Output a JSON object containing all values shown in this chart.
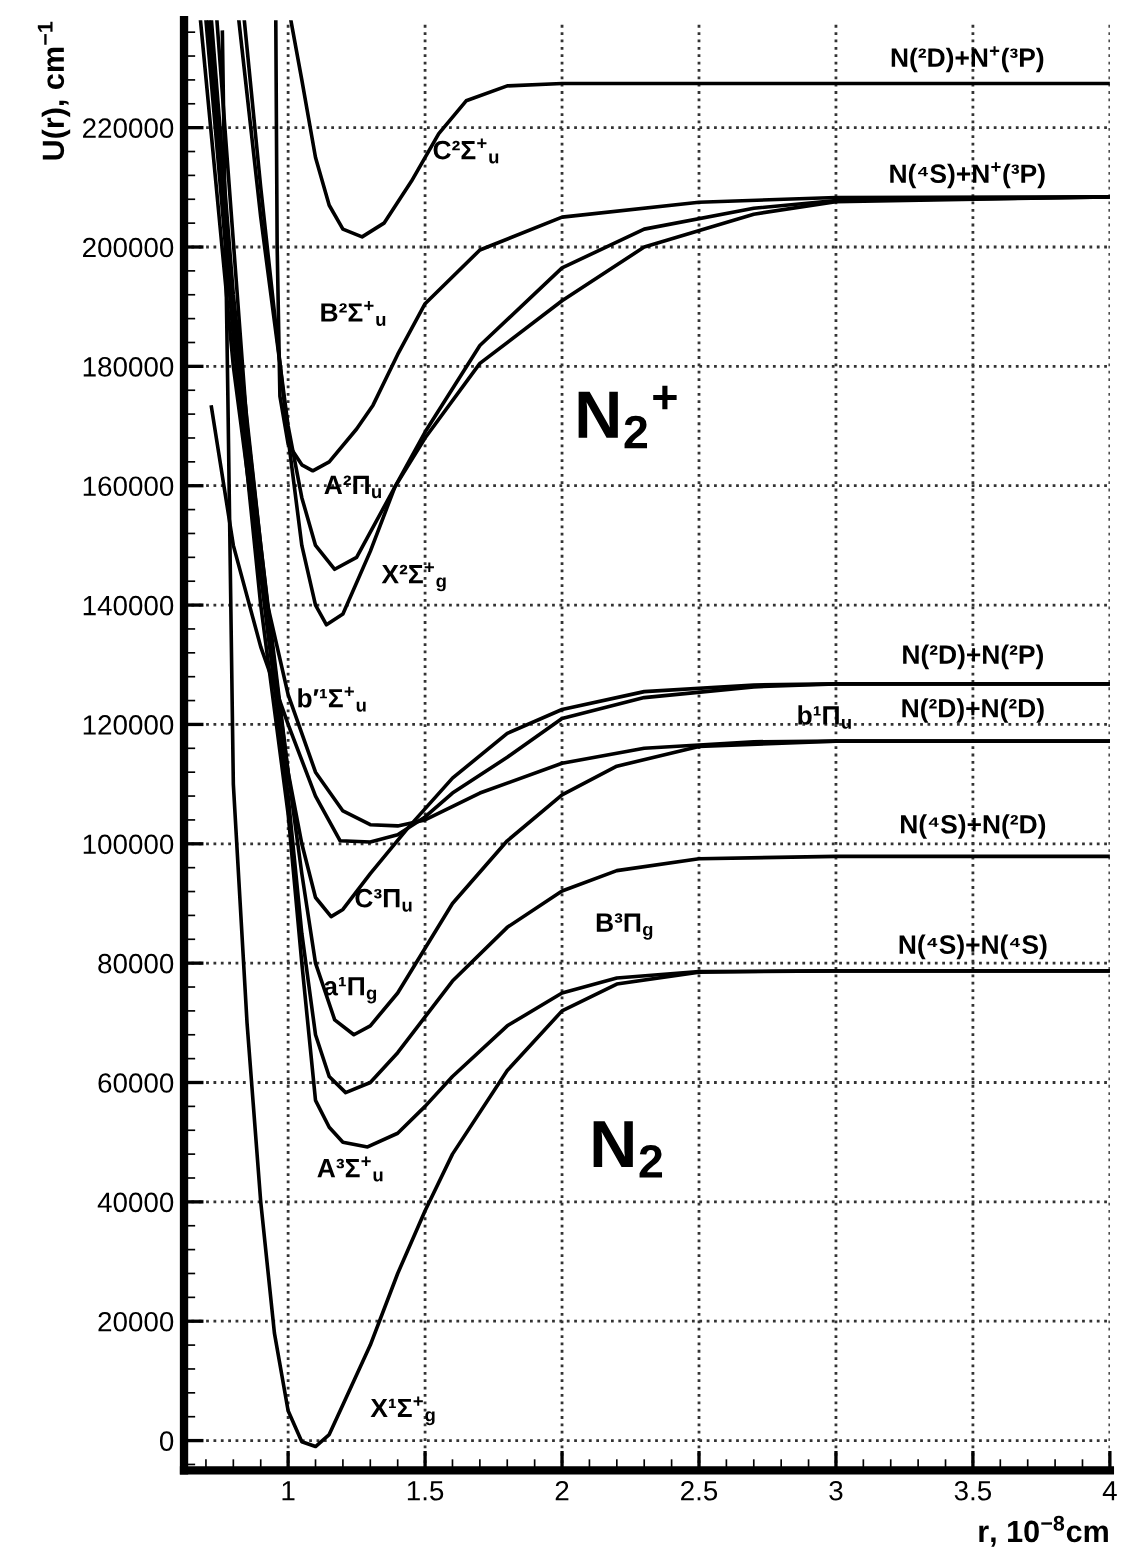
{
  "chart_data": {
    "type": "line",
    "xlabel": "r, 10$^{−8}$cm",
    "ylabel": "U(r), cm$^{−1}$",
    "xlim": [
      0.62,
      4
    ],
    "ylim": [
      -5000,
      238000
    ],
    "xticks": [
      1,
      1.5,
      2,
      2.5,
      3,
      3.5,
      4
    ],
    "yticks": [
      0,
      20000,
      40000,
      60000,
      80000,
      100000,
      120000,
      140000,
      160000,
      180000,
      200000,
      220000
    ],
    "grid": true,
    "line_style": "solid",
    "marker": "none",
    "series": [
      {
        "color": "#000000",
        "x": [
          0.76,
          0.78,
          0.8,
          0.85,
          0.9,
          0.95,
          1.0,
          1.05,
          1.1,
          1.15,
          1.2,
          1.3,
          1.4,
          1.5,
          1.6,
          1.8,
          2.0,
          2.2,
          2.5,
          3.0,
          4.0
        ],
        "values": [
          236000,
          175000,
          110000,
          70000,
          40000,
          18000,
          5000,
          -200,
          -1000,
          1000,
          6000,
          16000,
          28000,
          38500,
          48000,
          62000,
          72000,
          76500,
          78500,
          78700,
          78700
        ]
      },
      {
        "color": "#000000",
        "x": [
          0.7,
          0.8,
          0.9,
          1.0,
          1.05,
          1.1,
          1.15,
          1.2,
          1.29,
          1.4,
          1.5,
          1.6,
          1.8,
          2.0,
          2.2,
          2.5,
          3.0,
          4.0
        ],
        "values": [
          238000,
          185000,
          140000,
          105000,
          80000,
          57000,
          52500,
          50000,
          49200,
          51500,
          56000,
          61000,
          69500,
          75000,
          77500,
          78600,
          78700,
          78700
        ]
      },
      {
        "color": "#000000",
        "x": [
          0.71,
          0.8,
          0.9,
          1.0,
          1.05,
          1.1,
          1.15,
          1.21,
          1.3,
          1.4,
          1.5,
          1.6,
          1.8,
          2.0,
          2.2,
          2.5,
          3.0,
          4.0
        ],
        "values": [
          238000,
          188000,
          145000,
          108000,
          85000,
          68000,
          61000,
          58300,
          60000,
          65000,
          71000,
          77000,
          86000,
          92100,
          95500,
          97500,
          97900,
          97900
        ]
      },
      {
        "color": "#000000",
        "x": [
          0.72,
          0.8,
          0.9,
          1.0,
          1.05,
          1.1,
          1.17,
          1.24,
          1.3,
          1.4,
          1.5,
          1.6,
          1.8,
          2.0,
          2.2,
          2.5,
          3.0,
          4.0
        ],
        "values": [
          238000,
          192000,
          150000,
          112000,
          95000,
          80000,
          70500,
          68000,
          69500,
          75000,
          82500,
          90000,
          100500,
          108200,
          113000,
          116300,
          117200,
          117200
        ]
      },
      {
        "color": "#000000",
        "x": [
          0.74,
          0.85,
          0.95,
          1.0,
          1.05,
          1.1,
          1.157,
          1.2,
          1.3,
          1.44,
          1.6,
          1.8,
          2.0,
          2.3,
          2.7,
          3.0,
          4.0
        ],
        "values": [
          238000,
          170000,
          130000,
          112000,
          100000,
          91000,
          87800,
          89000,
          95000,
          102800,
          111000,
          118500,
          122500,
          125500,
          126600,
          126800,
          126800
        ]
      },
      {
        "color": "#000000",
        "x": [
          0.72,
          0.8,
          0.9,
          1.0,
          1.1,
          1.19,
          1.3,
          1.4,
          1.5,
          1.6,
          1.8,
          2.0,
          2.3,
          2.7,
          3.0,
          4.0
        ],
        "values": [
          173200,
          150000,
          133000,
          120000,
          108000,
          100500,
          100300,
          101500,
          104500,
          108500,
          114500,
          121000,
          124500,
          126300,
          126800,
          126800
        ]
      },
      {
        "color": "#000000",
        "x": [
          0.68,
          0.8,
          0.9,
          1.0,
          1.1,
          1.2,
          1.3,
          1.4,
          1.5,
          1.7,
          2.0,
          2.3,
          2.7,
          3.0,
          4.0
        ],
        "values": [
          238000,
          180000,
          145000,
          125000,
          112000,
          105500,
          103200,
          103000,
          104000,
          108500,
          113500,
          116000,
          117100,
          117200,
          117200
        ]
      },
      {
        "color": "#000000",
        "x": [
          1.01,
          1.05,
          1.1,
          1.15,
          1.2,
          1.27,
          1.35,
          1.45,
          1.55,
          1.65,
          1.8,
          2.0,
          4.0
        ],
        "values": [
          238000,
          228000,
          215000,
          207000,
          203000,
          201700,
          204000,
          211000,
          219000,
          224500,
          227000,
          227400,
          227400
        ]
      },
      {
        "color": "#000000",
        "x": [
          0.955,
          0.96,
          0.97,
          1.0,
          1.05,
          1.09,
          1.15,
          1.25,
          1.31,
          1.4,
          1.5,
          1.7,
          2.0,
          2.5,
          3.0,
          4.0
        ],
        "values": [
          238000,
          200000,
          175000,
          167000,
          163500,
          162500,
          164000,
          169500,
          173500,
          182000,
          190500,
          199500,
          205000,
          207500,
          208300,
          208400
        ]
      },
      {
        "color": "#000000",
        "x": [
          0.82,
          0.9,
          1.0,
          1.05,
          1.1,
          1.17,
          1.25,
          1.39,
          1.5,
          1.7,
          2.0,
          2.3,
          2.7,
          3.0,
          4.0
        ],
        "values": [
          238000,
          205000,
          170000,
          158000,
          150000,
          146000,
          148000,
          159800,
          169000,
          183500,
          196500,
          203000,
          206500,
          207800,
          208400
        ]
      },
      {
        "color": "#000000",
        "x": [
          0.84,
          0.9,
          1.0,
          1.05,
          1.1,
          1.14,
          1.2,
          1.3,
          1.39,
          1.5,
          1.7,
          2.0,
          2.3,
          2.7,
          3.0,
          4.0
        ],
        "values": [
          238000,
          210000,
          168000,
          150000,
          140000,
          136700,
          138500,
          149000,
          159800,
          168000,
          180500,
          191000,
          200000,
          205500,
          207600,
          208400
        ]
      }
    ],
    "annotations": [
      "N(²D)+N$^{+}$(³P)",
      "N(⁴S)+N$^{+}$(³P)",
      "N(²D)+N(²P)",
      "N(²D)+N(²D)",
      "N(⁴S)+N(²D)",
      "N(⁴S)+N(⁴S)",
      "C²Σ$^{+}$$_{u}$",
      "B²Σ$^{+}$$_{u}$",
      "A²Π$_{u}$",
      "X²Σ$^{+}$$_{g}$",
      "b′¹Σ$^{+}$$_{u}$",
      "b¹Π$_{u}$",
      "C³Π$_{u}$",
      "B³Π$_{g}$",
      "a¹Π$_{g}$",
      "A³Σ$^{+}$$_{u}$",
      "X¹Σ$^{+}$$_{g}$",
      "N$_{2}$$^{+}$",
      "N$_{2}$"
    ]
  }
}
